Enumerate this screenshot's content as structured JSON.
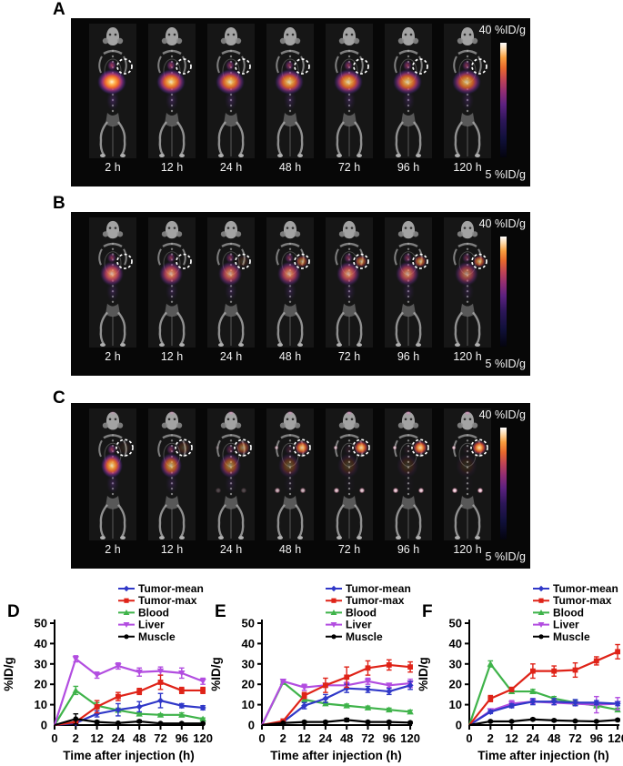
{
  "colors": {
    "tumor_mean": "#3038c8",
    "tumor_max": "#df2318",
    "blood": "#3fb34a",
    "liver": "#b24de0",
    "muscle": "#000000",
    "scan_background": "#070707",
    "scan_text": "#f5f5f5"
  },
  "imaging_panels": [
    {
      "label": "A",
      "time_labels": [
        "2 h",
        "12 h",
        "24 h",
        "48 h",
        "72 h",
        "96 h",
        "120 h"
      ],
      "colorbar": {
        "top": "40 %ID/g",
        "bottom": "5 %ID/g"
      },
      "body_signal": [
        1.0,
        0.92,
        0.88,
        0.85,
        0.85,
        0.82,
        0.78
      ],
      "tumor_signal": [
        0,
        0,
        0,
        0,
        0,
        0,
        0
      ],
      "knee_signal": [
        0,
        0,
        0,
        0,
        0,
        0,
        0
      ],
      "head_signal": [
        0,
        0,
        0,
        0,
        0,
        0,
        0
      ],
      "tint": "orange"
    },
    {
      "label": "B",
      "time_labels": [
        "2 h",
        "12 h",
        "24 h",
        "48 h",
        "72 h",
        "96 h",
        "120 h"
      ],
      "colorbar": {
        "top": "40 %ID/g",
        "bottom": "5 %ID/g"
      },
      "body_signal": [
        0.82,
        0.78,
        0.74,
        0.76,
        0.76,
        0.72,
        0.62
      ],
      "tumor_signal": [
        0,
        0,
        0.15,
        0.55,
        0.6,
        0.65,
        0.7
      ],
      "knee_signal": [
        0,
        0,
        0,
        0,
        0,
        0,
        0
      ],
      "head_signal": [
        0,
        0,
        0,
        0,
        0,
        0,
        0
      ],
      "tint": "pink"
    },
    {
      "label": "C",
      "time_labels": [
        "2 h",
        "12 h",
        "24 h",
        "48 h",
        "72 h",
        "96 h",
        "120 h"
      ],
      "colorbar": {
        "top": "40 %ID/g",
        "bottom": "5 %ID/g"
      },
      "body_signal": [
        0.9,
        0.7,
        0.55,
        0.3,
        0.18,
        0.14,
        0.1
      ],
      "tumor_signal": [
        0.08,
        0.2,
        0.5,
        0.85,
        0.9,
        0.92,
        0.95
      ],
      "knee_signal": [
        0,
        0,
        0.25,
        0.75,
        0.85,
        0.9,
        0.95
      ],
      "head_signal": [
        0.3,
        0.4,
        0.5,
        0.5,
        0.6,
        0.6,
        0.6
      ],
      "tint": "orange"
    }
  ],
  "chart_data": [
    {
      "type": "line",
      "panel": "D",
      "x_categories": [
        "0",
        "2",
        "12",
        "24",
        "48",
        "72",
        "96",
        "120"
      ],
      "xlabel": "Time after injection (h)",
      "ylabel": "%ID/g",
      "ylim": [
        0,
        50
      ],
      "yticks": [
        0,
        10,
        20,
        30,
        40,
        50
      ],
      "legend_position": "top-right",
      "series": [
        {
          "name": "Tumor-mean",
          "color": "#3038c8",
          "marker": "diamond",
          "values": [
            0,
            1,
            5.5,
            7.5,
            9,
            12,
            9.5,
            8.5
          ],
          "errors": [
            0,
            0.4,
            1.5,
            3,
            2.5,
            3.5,
            1,
            1
          ]
        },
        {
          "name": "Tumor-max",
          "color": "#df2318",
          "marker": "square",
          "values": [
            0,
            1.5,
            9,
            14,
            16.5,
            21,
            17,
            17
          ],
          "errors": [
            0,
            0.5,
            3,
            2,
            1.5,
            3.5,
            1.5,
            1.5
          ]
        },
        {
          "name": "Blood",
          "color": "#3fb34a",
          "marker": "triangle",
          "values": [
            0,
            17,
            9.5,
            7.3,
            5.5,
            5,
            5,
            3
          ],
          "errors": [
            0,
            2,
            1.5,
            1,
            0.7,
            0.5,
            1,
            0.5
          ]
        },
        {
          "name": "Liver",
          "color": "#b24de0",
          "marker": "triangle-down",
          "values": [
            0,
            32.5,
            24.5,
            29,
            26,
            26.5,
            25.5,
            21.5
          ],
          "errors": [
            0,
            1.5,
            1.5,
            1.5,
            2,
            2,
            2.5,
            1.5
          ]
        },
        {
          "name": "Muscle",
          "color": "#000000",
          "marker": "circle",
          "values": [
            0,
            3,
            1.5,
            1,
            1.8,
            0.8,
            0.8,
            0.8
          ],
          "errors": [
            0,
            2.5,
            0.6,
            0.3,
            0.6,
            0.3,
            0.3,
            0.3
          ]
        }
      ]
    },
    {
      "type": "line",
      "panel": "E",
      "x_categories": [
        "0",
        "2",
        "12",
        "24",
        "48",
        "72",
        "96",
        "120"
      ],
      "xlabel": "Time after injection (h)",
      "ylabel": "%ID/g",
      "ylim": [
        0,
        50
      ],
      "yticks": [
        0,
        10,
        20,
        30,
        40,
        50
      ],
      "legend_position": "top-right",
      "series": [
        {
          "name": "Tumor-mean",
          "color": "#3038c8",
          "marker": "diamond",
          "values": [
            0,
            1.5,
            9.5,
            13,
            18,
            17.5,
            16.5,
            19.5
          ],
          "errors": [
            0,
            0.3,
            1.5,
            2,
            2,
            1.5,
            1.5,
            2
          ]
        },
        {
          "name": "Tumor-max",
          "color": "#df2318",
          "marker": "square",
          "values": [
            0,
            2,
            14.5,
            19.5,
            23.5,
            28,
            29.5,
            28.5
          ],
          "errors": [
            0,
            0.5,
            1.5,
            3.5,
            5,
            3.5,
            2.5,
            2.5
          ]
        },
        {
          "name": "Blood",
          "color": "#3fb34a",
          "marker": "triangle",
          "values": [
            0,
            21,
            12.5,
            10.5,
            9.5,
            8.5,
            7.5,
            6.5
          ],
          "errors": [
            0,
            0.5,
            1,
            0.8,
            0.8,
            0.8,
            0.8,
            0.8
          ]
        },
        {
          "name": "Liver",
          "color": "#b24de0",
          "marker": "triangle-down",
          "values": [
            0,
            21.5,
            18.5,
            19.5,
            19.5,
            21.5,
            19.5,
            20.5
          ],
          "errors": [
            0,
            0.5,
            1.5,
            1,
            1.5,
            1.5,
            1,
            2
          ]
        },
        {
          "name": "Muscle",
          "color": "#000000",
          "marker": "circle",
          "values": [
            0,
            1,
            1.5,
            1.5,
            2.5,
            1.5,
            1.5,
            1.2
          ],
          "errors": [
            0,
            0.3,
            0.5,
            0.5,
            0.8,
            0.5,
            0.5,
            0.4
          ]
        }
      ]
    },
    {
      "type": "line",
      "panel": "F",
      "x_categories": [
        "0",
        "2",
        "12",
        "24",
        "48",
        "72",
        "96",
        "120"
      ],
      "xlabel": "Time after injection (h)",
      "ylabel": "%ID/g",
      "ylim": [
        0,
        50
      ],
      "yticks": [
        0,
        10,
        20,
        30,
        40,
        50
      ],
      "legend_position": "top-right",
      "series": [
        {
          "name": "Tumor-mean",
          "color": "#3038c8",
          "marker": "diamond",
          "values": [
            0,
            6.5,
            9.5,
            11.5,
            11.5,
            11,
            11,
            10.5
          ],
          "errors": [
            0,
            0.8,
            1,
            1.5,
            1.5,
            1.5,
            1,
            1
          ]
        },
        {
          "name": "Tumor-max",
          "color": "#df2318",
          "marker": "square",
          "values": [
            0,
            13,
            17.5,
            26.5,
            26.5,
            27,
            31.5,
            36
          ],
          "errors": [
            0,
            1.5,
            1,
            3.5,
            2.5,
            3.5,
            2,
            3.5
          ]
        },
        {
          "name": "Blood",
          "color": "#3fb34a",
          "marker": "triangle",
          "values": [
            0,
            30,
            16.5,
            16.5,
            13,
            11,
            9.5,
            7.5
          ],
          "errors": [
            0,
            1.5,
            1,
            1,
            1,
            1,
            1,
            0.8
          ]
        },
        {
          "name": "Liver",
          "color": "#b24de0",
          "marker": "triangle-down",
          "values": [
            0,
            7,
            10.5,
            11.5,
            11,
            10.5,
            10,
            10.5
          ],
          "errors": [
            0,
            0.8,
            1.5,
            1,
            1,
            1,
            4,
            3
          ]
        },
        {
          "name": "Muscle",
          "color": "#000000",
          "marker": "circle",
          "values": [
            0,
            1.8,
            1.8,
            2.8,
            2.3,
            2,
            1.8,
            2.5
          ],
          "errors": [
            0,
            0.4,
            0.4,
            0.5,
            0.5,
            0.4,
            0.4,
            0.5
          ]
        }
      ]
    }
  ]
}
